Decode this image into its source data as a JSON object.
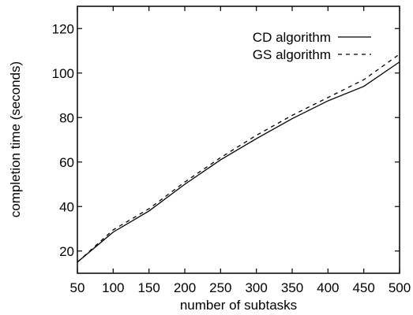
{
  "chart_data": {
    "type": "line",
    "title": "",
    "xlabel": "number of subtasks",
    "ylabel": "completion time (seconds)",
    "xlim": [
      50,
      500
    ],
    "ylim": [
      10,
      130
    ],
    "xticks": [
      50,
      100,
      150,
      200,
      250,
      300,
      350,
      400,
      450,
      500
    ],
    "yticks": [
      20,
      40,
      60,
      80,
      100,
      120
    ],
    "grid": false,
    "legend_position": "top-right",
    "x": [
      50,
      100,
      150,
      200,
      250,
      300,
      350,
      400,
      450,
      500
    ],
    "series": [
      {
        "name": "CD algorithm",
        "style": "solid",
        "color": "#000000",
        "values": [
          15,
          28.5,
          38,
          50,
          61,
          70.5,
          79.5,
          87.5,
          94,
          105
        ]
      },
      {
        "name": "GS algorithm",
        "style": "dashed",
        "color": "#000000",
        "values": [
          15,
          29.5,
          39,
          51,
          62,
          72,
          81,
          89,
          97,
          108.5
        ]
      }
    ]
  }
}
